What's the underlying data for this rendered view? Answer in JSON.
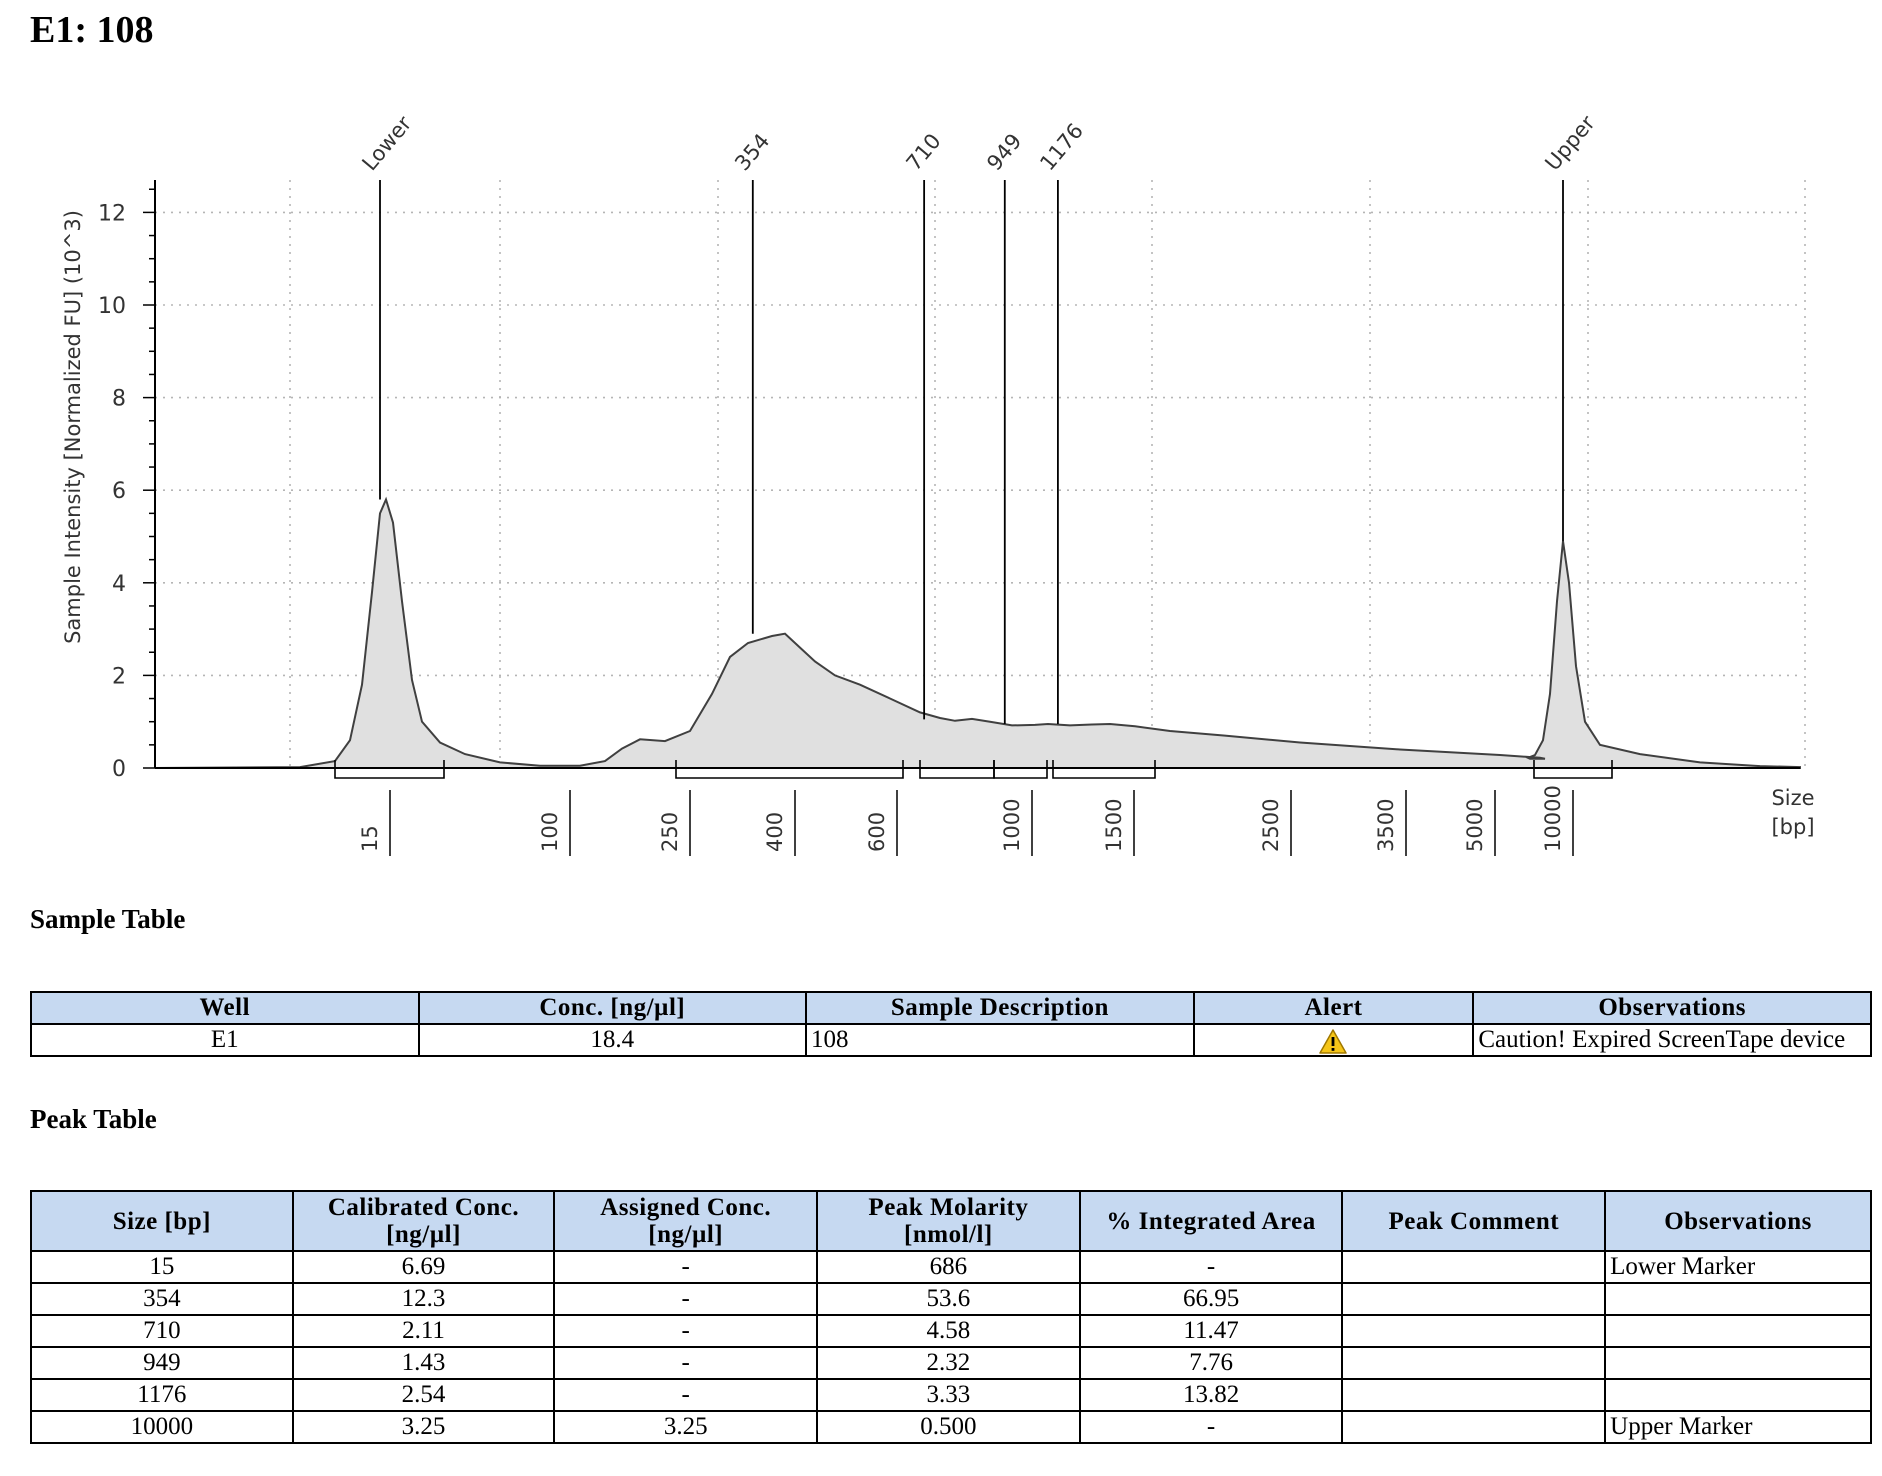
{
  "page_title": "E1: 108",
  "chart_data": {
    "type": "line",
    "ylabel": "Sample Intensity [Normalized FU] (10^3)",
    "xlabel": "Size\n[bp]",
    "xlabel_line1": "Size",
    "xlabel_line2": "[bp]",
    "ylim": [
      0,
      12.5
    ],
    "y_ticks": [
      0,
      2,
      4,
      6,
      8,
      10,
      12
    ],
    "x_ticks": [
      "15",
      "100",
      "250",
      "400",
      "600",
      "1000",
      "1500",
      "2500",
      "3500",
      "5000",
      "10000"
    ],
    "peaks": [
      {
        "label": "Lower",
        "size_bp": 15,
        "height": 5.8
      },
      {
        "label": "354",
        "size_bp": 354,
        "height": 2.9
      },
      {
        "label": "710",
        "size_bp": 710,
        "height": 1.05
      },
      {
        "label": "949",
        "size_bp": 949,
        "height": 0.95
      },
      {
        "label": "1176",
        "size_bp": 1176,
        "height": 0.95
      },
      {
        "label": "Upper",
        "size_bp": 10000,
        "height": 4.9
      }
    ],
    "grid": true
  },
  "sample_table": {
    "title": "Sample Table",
    "headers": [
      "Well",
      "Conc. [ng/µl]",
      "Sample Description",
      "Alert",
      "Observations"
    ],
    "row": {
      "well": "E1",
      "conc": "18.4",
      "description": "108",
      "alert_icon": "warning-triangle-icon",
      "observations": "Caution! Expired ScreenTape device"
    }
  },
  "peak_table": {
    "title": "Peak Table",
    "headers": {
      "size": "Size [bp]",
      "cal_conc_1": "Calibrated Conc.",
      "cal_conc_2": "[ng/µl]",
      "assigned_conc_1": "Assigned Conc.",
      "assigned_conc_2": "[ng/µl]",
      "molarity_1": "Peak Molarity",
      "molarity_2": "[nmol/l]",
      "area": "% Integrated Area",
      "comment": "Peak Comment",
      "observations": "Observations"
    },
    "rows": [
      {
        "size": "15",
        "cal_conc": "6.69",
        "assigned_conc": "-",
        "molarity": "686",
        "area": "-",
        "comment": "",
        "observations": "Lower Marker"
      },
      {
        "size": "354",
        "cal_conc": "12.3",
        "assigned_conc": "-",
        "molarity": "53.6",
        "area": "66.95",
        "comment": "",
        "observations": ""
      },
      {
        "size": "710",
        "cal_conc": "2.11",
        "assigned_conc": "-",
        "molarity": "4.58",
        "area": "11.47",
        "comment": "",
        "observations": ""
      },
      {
        "size": "949",
        "cal_conc": "1.43",
        "assigned_conc": "-",
        "molarity": "2.32",
        "area": "7.76",
        "comment": "",
        "observations": ""
      },
      {
        "size": "1176",
        "cal_conc": "2.54",
        "assigned_conc": "-",
        "molarity": "3.33",
        "area": "13.82",
        "comment": "",
        "observations": ""
      },
      {
        "size": "10000",
        "cal_conc": "3.25",
        "assigned_conc": "3.25",
        "molarity": "0.500",
        "area": "-",
        "comment": "",
        "observations": "Upper Marker"
      }
    ]
  },
  "colors": {
    "header_bg": "#c6d9f1",
    "curve_fill": "#e0e0e0",
    "curve_stroke": "#404040",
    "warning": "#f5c518"
  }
}
